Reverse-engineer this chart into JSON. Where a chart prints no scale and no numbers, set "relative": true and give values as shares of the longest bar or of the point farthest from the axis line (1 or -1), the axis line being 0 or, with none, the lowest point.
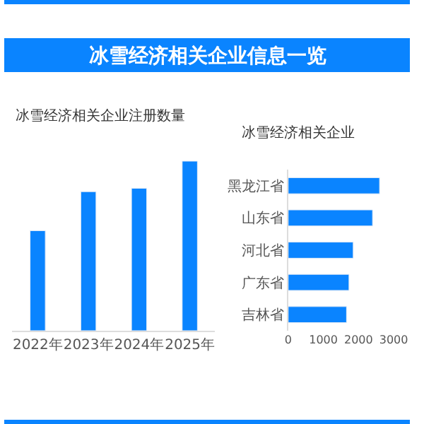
{
  "chart_data": [
    {
      "type": "bar",
      "title": "冰雪经济相关企业注册数量",
      "annotations": [
        "冰雪经济相关企业信息一览"
      ],
      "categories": [
        "2022年",
        "2023年",
        "2024年",
        "2025年"
      ],
      "relative": true,
      "series": [
        {
          "color": "#0a84ff",
          "values": [
            0.59,
            0.82,
            0.84,
            1
          ]
        }
      ],
      "grid": false
    },
    {
      "type": "bar",
      "orientation": "horizontal",
      "title": "冰雪经济相关企业",
      "categories": [
        "黑龙江省",
        "山东省",
        "河北省",
        "广东省",
        "吉林省"
      ],
      "series": [
        {
          "color": "#0a84ff",
          "values": [
            2600,
            2400,
            1850,
            1730,
            1660
          ]
        }
      ],
      "xlim": [
        0,
        3000
      ],
      "xticks": [
        0,
        1000,
        2000,
        3000
      ],
      "grid": false
    }
  ]
}
